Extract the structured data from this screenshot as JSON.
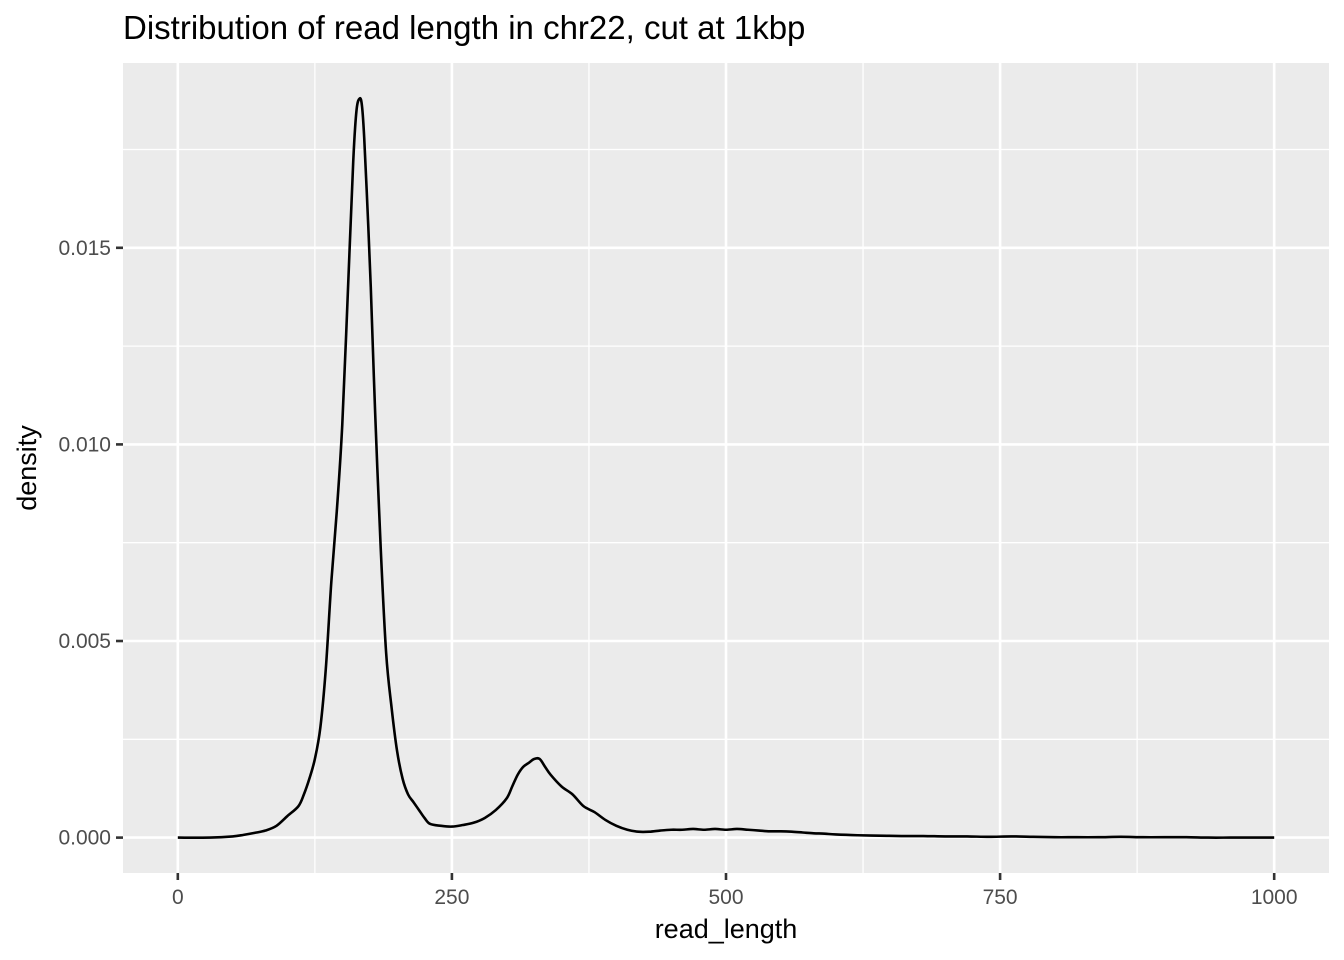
{
  "chart_data": {
    "type": "line",
    "title": "Distribution of read length in chr22, cut at 1kbp",
    "xlabel": "read_length",
    "ylabel": "density",
    "xlim": [
      -50,
      1050
    ],
    "ylim": [
      -0.0009,
      0.0197
    ],
    "x_ticks": [
      0,
      250,
      500,
      750,
      1000
    ],
    "x_tick_labels": [
      "0",
      "250",
      "500",
      "750",
      "1000"
    ],
    "y_ticks": [
      0,
      0.005,
      0.01,
      0.015
    ],
    "y_tick_labels": [
      "0.000",
      "0.005",
      "0.010",
      "0.015"
    ],
    "grid": true,
    "background": "#ebebeb",
    "line_color": "#000000",
    "series": [
      {
        "x": [
          0,
          30,
          50,
          60,
          70,
          80,
          90,
          100,
          110,
          115,
          120,
          125,
          130,
          135,
          140,
          145,
          150,
          155,
          160,
          163,
          166,
          168,
          170,
          173,
          176,
          180,
          185,
          190,
          195,
          200,
          205,
          210,
          215,
          220,
          225,
          230,
          240,
          250,
          260,
          270,
          280,
          290,
          300,
          305,
          310,
          315,
          320,
          325,
          330,
          335,
          340,
          350,
          360,
          370,
          380,
          390,
          400,
          410,
          420,
          430,
          440,
          450,
          460,
          470,
          480,
          490,
          500,
          510,
          520,
          530,
          540,
          550,
          560,
          570,
          580,
          590,
          600,
          620,
          640,
          660,
          680,
          700,
          720,
          740,
          760,
          780,
          800,
          820,
          840,
          860,
          880,
          900,
          920,
          940,
          960,
          980,
          1000
        ],
        "y": [
          0,
          0,
          3e-05,
          7e-05,
          0.00012,
          0.00018,
          0.0003,
          0.00055,
          0.0008,
          0.0011,
          0.0015,
          0.002,
          0.0028,
          0.0043,
          0.0065,
          0.0083,
          0.0105,
          0.0138,
          0.0172,
          0.0185,
          0.0188,
          0.0186,
          0.0178,
          0.016,
          0.014,
          0.0108,
          0.0074,
          0.0047,
          0.0033,
          0.0022,
          0.0015,
          0.0011,
          0.0009,
          0.0007,
          0.0005,
          0.00035,
          0.0003,
          0.00028,
          0.00032,
          0.00038,
          0.0005,
          0.0007,
          0.001,
          0.0013,
          0.0016,
          0.0018,
          0.0019,
          0.002,
          0.002,
          0.0018,
          0.0016,
          0.0013,
          0.0011,
          0.0008,
          0.00065,
          0.00045,
          0.0003,
          0.0002,
          0.00015,
          0.00015,
          0.00018,
          0.0002,
          0.0002,
          0.00022,
          0.0002,
          0.00022,
          0.0002,
          0.00022,
          0.0002,
          0.00018,
          0.00016,
          0.00016,
          0.00015,
          0.00013,
          0.00011,
          0.0001,
          8e-05,
          6e-05,
          5e-05,
          4e-05,
          4e-05,
          3e-05,
          3e-05,
          2e-05,
          3e-05,
          2e-05,
          1e-05,
          1e-05,
          1e-05,
          2e-05,
          1e-05,
          1e-05,
          1e-05,
          0,
          0,
          0,
          0
        ]
      }
    ]
  }
}
